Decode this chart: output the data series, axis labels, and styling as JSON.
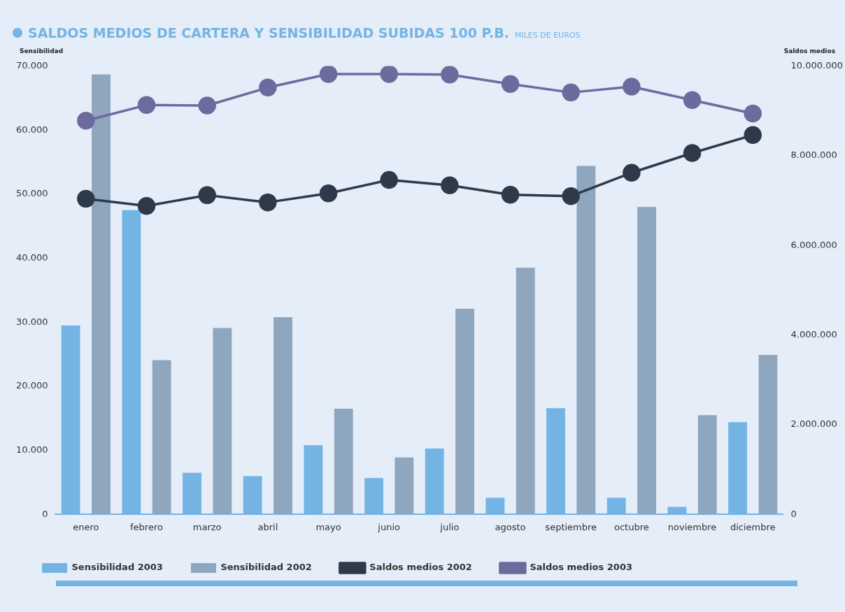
{
  "chart_data": {
    "type": "bar",
    "title": "SALDOS MEDIOS DE CARTERA Y SENSIBILIDAD SUBIDAS 100 P.B.",
    "subtitle": "MILES DE EUROS",
    "ylabel": "Sensibilidad",
    "y2label": "Saldos medios",
    "categories": [
      "enero",
      "febrero",
      "marzo",
      "abril",
      "mayo",
      "junio",
      "julio",
      "agosto",
      "septiembre",
      "octubre",
      "noviembre",
      "diciembre"
    ],
    "series": [
      {
        "name": "Sensibilidad 2003",
        "color": "#74b4e4",
        "values": [
          29500,
          47500,
          6500,
          6000,
          10800,
          5700,
          10300,
          2600,
          16600,
          2600,
          1200,
          14400
        ]
      },
      {
        "name": "Sensibilidad 2002",
        "color": "#8fa6bf",
        "values": [
          68700,
          24100,
          29100,
          30800,
          16500,
          8900,
          32100,
          38500,
          54400,
          48000,
          15500,
          24900
        ]
      },
      {
        "name": "Saldos medios 2002",
        "type": "line",
        "axis": "y2",
        "color": "#2e3a4a",
        "values": [
          7040000,
          6880000,
          7120000,
          6960000,
          7160000,
          7460000,
          7340000,
          7130000,
          7100000,
          7620000,
          8060000,
          8460000
        ]
      },
      {
        "name": "Saldos medios 2003",
        "type": "line",
        "axis": "y2",
        "color": "#6d6a9e",
        "values": [
          8780000,
          9130000,
          9120000,
          9520000,
          9820000,
          9820000,
          9810000,
          9600000,
          9410000,
          9540000,
          9240000,
          8940000
        ]
      }
    ],
    "ylim": [
      0,
      70000
    ],
    "yticks": [
      0,
      {
        "value": 10000,
        "label": "10.000"
      },
      {
        "value": 20000,
        "label": "20.000"
      },
      {
        "value": 30000,
        "label": "30.000"
      },
      {
        "value": 40000,
        "label": "40.000"
      },
      {
        "value": 50000,
        "label": "50.000"
      },
      {
        "value": 60000,
        "label": "60.000"
      },
      {
        "value": 70000,
        "label": "70.000"
      }
    ],
    "y2lim": [
      0,
      10000000
    ],
    "y2ticks": [
      0,
      {
        "value": 2000000,
        "label": "2.000.000"
      },
      {
        "value": 4000000,
        "label": "4.000.000"
      },
      {
        "value": 6000000,
        "label": "6.000.000"
      },
      {
        "value": 8000000,
        "label": "8.000.000"
      },
      {
        "value": 10000000,
        "label": "10.000.000"
      }
    ],
    "grid": false,
    "legend": "bottom",
    "marker": "circle",
    "line_style": "solid"
  }
}
